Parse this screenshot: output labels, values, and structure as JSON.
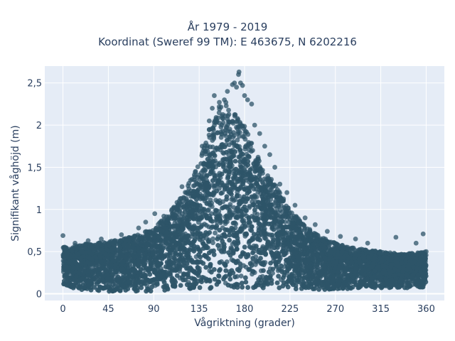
{
  "chart_data": {
    "type": "scatter",
    "title": "År 1979 - 2019",
    "subtitle": "Koordinat (Sweref 99 TM): E 463675, N 6202216",
    "xlabel": "Vågriktning (grader)",
    "ylabel": "Signifikant våghöjd (m)",
    "xlim": [
      -18,
      378
    ],
    "ylim": [
      -0.08,
      2.7
    ],
    "xticks": [
      0,
      45,
      90,
      135,
      180,
      225,
      270,
      315,
      360
    ],
    "xtick_labels": [
      "0",
      "45",
      "90",
      "135",
      "180",
      "225",
      "270",
      "315",
      "360"
    ],
    "yticks": [
      0,
      0.5,
      1,
      1.5,
      2,
      2.5
    ],
    "ytick_labels": [
      "0",
      "0,5",
      "1",
      "1,5",
      "2",
      "2,5"
    ],
    "grid": true,
    "background": "#e5ecf6",
    "marker_color": "#2e5468",
    "envelope": {
      "x": [
        0,
        15,
        30,
        45,
        60,
        75,
        90,
        105,
        120,
        135,
        145,
        155,
        160,
        170,
        180,
        190,
        200,
        210,
        225,
        240,
        255,
        270,
        285,
        300,
        315,
        330,
        345,
        360
      ],
      "ymin": [
        0.08,
        0.05,
        0.04,
        0.03,
        0.03,
        0.03,
        0.03,
        0.04,
        0.05,
        0.06,
        0.06,
        0.07,
        0.07,
        0.07,
        0.07,
        0.07,
        0.07,
        0.06,
        0.06,
        0.05,
        0.05,
        0.05,
        0.06,
        0.06,
        0.07,
        0.07,
        0.07,
        0.08
      ],
      "ymax": [
        0.55,
        0.58,
        0.6,
        0.62,
        0.65,
        0.7,
        0.78,
        0.95,
        1.2,
        1.55,
        1.95,
        2.25,
        2.3,
        2.15,
        2.0,
        1.7,
        1.5,
        1.3,
        1.0,
        0.8,
        0.68,
        0.6,
        0.55,
        0.52,
        0.5,
        0.48,
        0.48,
        0.5
      ]
    },
    "outliers": [
      {
        "x": 0,
        "y": 0.69
      },
      {
        "x": 12,
        "y": 0.6
      },
      {
        "x": 25,
        "y": 0.63
      },
      {
        "x": 38,
        "y": 0.65
      },
      {
        "x": 58,
        "y": 0.7
      },
      {
        "x": 75,
        "y": 0.78
      },
      {
        "x": 82,
        "y": 0.85
      },
      {
        "x": 91,
        "y": 0.95
      },
      {
        "x": 100,
        "y": 0.92
      },
      {
        "x": 108,
        "y": 1.0
      },
      {
        "x": 118,
        "y": 1.27
      },
      {
        "x": 124,
        "y": 1.28
      },
      {
        "x": 130,
        "y": 1.35
      },
      {
        "x": 138,
        "y": 1.75
      },
      {
        "x": 145,
        "y": 2.05
      },
      {
        "x": 148,
        "y": 2.2
      },
      {
        "x": 150,
        "y": 2.35
      },
      {
        "x": 155,
        "y": 2.27
      },
      {
        "x": 160,
        "y": 2.3
      },
      {
        "x": 163,
        "y": 2.4
      },
      {
        "x": 168,
        "y": 2.48
      },
      {
        "x": 170,
        "y": 2.5
      },
      {
        "x": 172,
        "y": 2.45
      },
      {
        "x": 174,
        "y": 2.6
      },
      {
        "x": 174.5,
        "y": 2.63
      },
      {
        "x": 176,
        "y": 2.5
      },
      {
        "x": 178,
        "y": 2.47
      },
      {
        "x": 180,
        "y": 2.35
      },
      {
        "x": 183,
        "y": 2.3
      },
      {
        "x": 187,
        "y": 2.25
      },
      {
        "x": 190,
        "y": 2.0
      },
      {
        "x": 195,
        "y": 1.9
      },
      {
        "x": 200,
        "y": 1.75
      },
      {
        "x": 205,
        "y": 1.65
      },
      {
        "x": 210,
        "y": 1.5
      },
      {
        "x": 215,
        "y": 1.3
      },
      {
        "x": 222,
        "y": 1.2
      },
      {
        "x": 230,
        "y": 1.05
      },
      {
        "x": 240,
        "y": 0.9
      },
      {
        "x": 250,
        "y": 0.82
      },
      {
        "x": 262,
        "y": 0.74
      },
      {
        "x": 275,
        "y": 0.68
      },
      {
        "x": 290,
        "y": 0.65
      },
      {
        "x": 302,
        "y": 0.6
      },
      {
        "x": 330,
        "y": 0.67
      },
      {
        "x": 350,
        "y": 0.6
      },
      {
        "x": 357,
        "y": 0.71
      },
      {
        "x": 360,
        "y": 0.5
      }
    ]
  }
}
